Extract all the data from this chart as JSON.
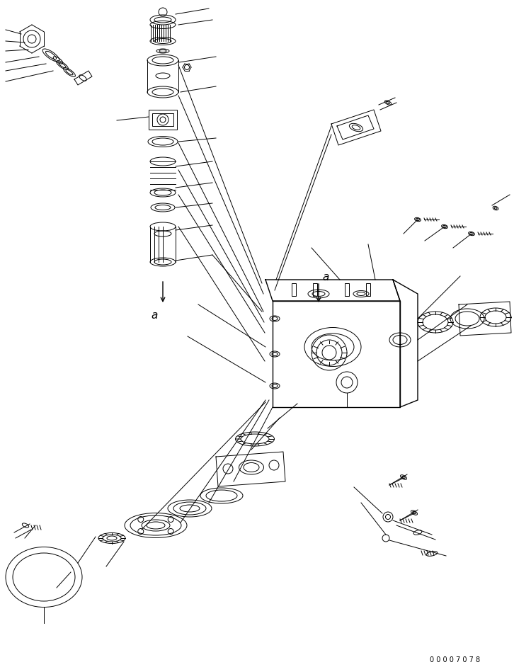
{
  "page_id": "00007078",
  "background_color": "#ffffff",
  "line_color": "#000000",
  "figsize": [
    7.26,
    9.42
  ],
  "dpi": 100
}
